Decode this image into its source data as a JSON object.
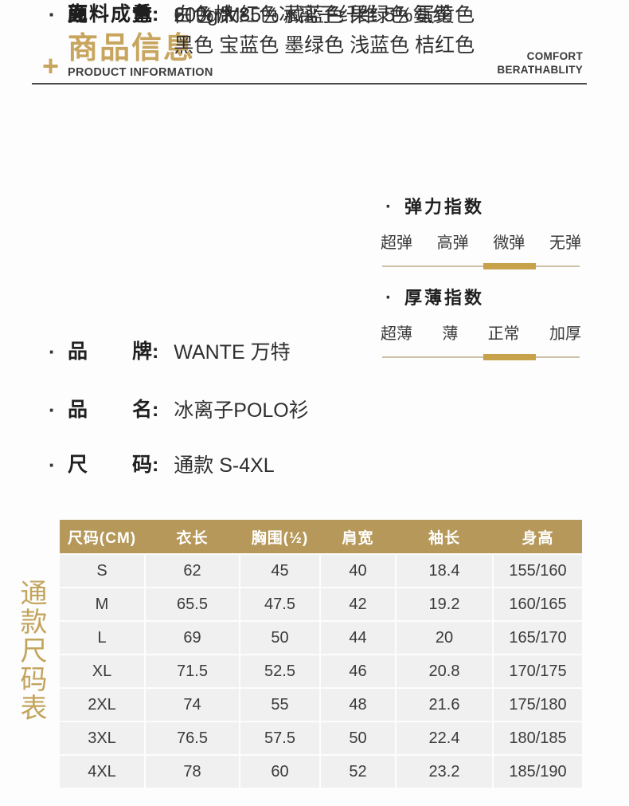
{
  "header": {
    "plus_mark": "+",
    "title": "商品信息",
    "subtitle": "PRODUCT INFORMATION",
    "tagline_line1": "COMFORT",
    "tagline_line2": "BERATHABLITY"
  },
  "misc": {
    "bullet": "·",
    "colon": ":"
  },
  "attributes": [
    {
      "label": "品牌",
      "value": "WANTE 万特",
      "value2": ""
    },
    {
      "label": "品名",
      "value": "冰离子POLO衫",
      "value2": ""
    },
    {
      "label": "尺码",
      "value": "通款 S-4XL",
      "value2": ""
    },
    {
      "label": "克重",
      "value": "200g/M²",
      "value2": ""
    },
    {
      "label": "面料成分",
      "value": "60%棉 35%冰离子纤维 5%氨纶",
      "value2": ""
    },
    {
      "label": "颜色",
      "value": "白色 大红色 藏蓝色 果绿色 蛋黄色",
      "value2": "黑色 宝蓝色 墨绿色 浅蓝色 桔红色"
    }
  ],
  "indices": [
    {
      "title": "弹力指数",
      "options": [
        "超弹",
        "高弹",
        "微弹",
        "无弹"
      ],
      "selected": "微弹"
    },
    {
      "title": "厚薄指数",
      "options": [
        "超薄",
        "薄",
        "正常",
        "加厚"
      ],
      "selected": "正常"
    }
  ],
  "colors": {
    "gold_title": "#c8a55e",
    "table_header_gold": "#b6985a",
    "indicator_gold": "#c8a24a",
    "indicator_track": "#cdc2a8"
  },
  "size_table": {
    "vertical_label": "通款尺码表",
    "columns": [
      "尺码(CM)",
      "衣长",
      "胸围(½)",
      "肩宽",
      "袖长",
      "身高"
    ],
    "rows": [
      [
        "S",
        "62",
        "45",
        "40",
        "18.4",
        "155/160"
      ],
      [
        "M",
        "65.5",
        "47.5",
        "42",
        "19.2",
        "160/165"
      ],
      [
        "L",
        "69",
        "50",
        "44",
        "20",
        "165/170"
      ],
      [
        "XL",
        "71.5",
        "52.5",
        "46",
        "20.8",
        "170/175"
      ],
      [
        "2XL",
        "74",
        "55",
        "48",
        "21.6",
        "175/180"
      ],
      [
        "3XL",
        "76.5",
        "57.5",
        "50",
        "22.4",
        "180/185"
      ],
      [
        "4XL",
        "78",
        "60",
        "52",
        "23.2",
        "185/190"
      ]
    ]
  }
}
